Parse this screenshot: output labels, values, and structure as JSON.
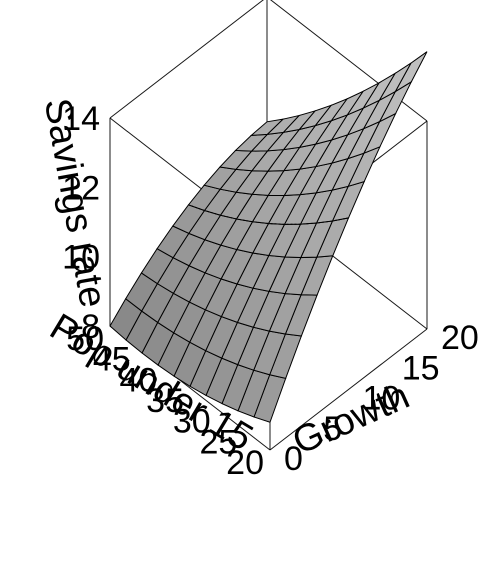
{
  "chart_data": {
    "type": "surface",
    "title": "",
    "surface": {
      "fill": "#bfbfbf",
      "grid_color": "#000000",
      "dashed_grid_color": "#000000"
    },
    "axes": {
      "x": {
        "label": "Growth",
        "range": [
          0,
          20
        ],
        "tick_labels": [
          "0",
          "5",
          "10",
          "15",
          "20"
        ]
      },
      "y": {
        "label": "Pop under 15",
        "range": [
          20,
          50
        ],
        "tick_labels": [
          "20",
          "25",
          "30",
          "35",
          "40",
          "45",
          "50"
        ]
      },
      "z": {
        "label": "Savings rate",
        "range": [
          8,
          14
        ],
        "tick_labels": [
          "8",
          "10",
          "12",
          "14"
        ]
      }
    },
    "grid": {
      "growth_steps": 10,
      "pop_steps": 10
    },
    "surface_function": "quadratic-response-surface"
  }
}
